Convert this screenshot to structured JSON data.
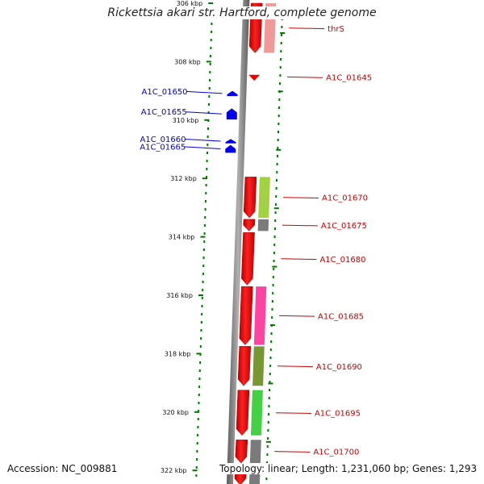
{
  "title": "Rickettsia akari str. Hartford, complete genome",
  "accession_text": "Accession: NC_009881",
  "summary_text": "Topology: linear; Length: 1,231,060 bp; Genes: 1,293",
  "colors": {
    "forward_label": "#cc0000",
    "reverse_label": "#0000cc",
    "tick": "#007700",
    "axis": "#808080"
  },
  "scale_ticks": [
    {
      "kbp": 306,
      "label": "306 kbp"
    },
    {
      "kbp": 308,
      "label": "308 kbp"
    },
    {
      "kbp": 310,
      "label": "310 kbp"
    },
    {
      "kbp": 312,
      "label": "312 kbp"
    },
    {
      "kbp": 314,
      "label": "314 kbp"
    },
    {
      "kbp": 316,
      "label": "316 kbp"
    },
    {
      "kbp": 318,
      "label": "318 kbp"
    },
    {
      "kbp": 320,
      "label": "320 kbp"
    },
    {
      "kbp": 322,
      "label": "322 kbp"
    }
  ],
  "forward_genes": [
    {
      "name": "thrS",
      "start": 306.0,
      "end": 307.7,
      "cog": "#ee9090"
    },
    {
      "name": "A1C_01645",
      "start": 308.45,
      "end": 308.6,
      "cog": null
    },
    {
      "name": "A1C_01670",
      "start": 311.95,
      "end": 313.35,
      "cog": "#9acd32"
    },
    {
      "name": "A1C_01675",
      "start": 313.4,
      "end": 313.8,
      "cog": "#707070"
    },
    {
      "name": "A1C_01680",
      "start": 313.85,
      "end": 315.65,
      "cog": null
    },
    {
      "name": "A1C_01685",
      "start": 315.7,
      "end": 317.7,
      "cog": "#ff3399"
    },
    {
      "name": "A1C_01690",
      "start": 317.75,
      "end": 319.1,
      "cog": "#6b8e23"
    },
    {
      "name": "A1C_01695",
      "start": 319.25,
      "end": 320.8,
      "cog": "#33cc33"
    },
    {
      "name": "A1C_01700",
      "start": 320.95,
      "end": 321.75,
      "cog": "#707070"
    },
    {
      "name": "",
      "start": 321.9,
      "end": 322.5,
      "cog": "#707070"
    }
  ],
  "reverse_genes": [
    {
      "name": "A1C_01650",
      "start": 309.0,
      "end": 309.18
    },
    {
      "name": "A1C_01655",
      "start": 309.6,
      "end": 309.98
    },
    {
      "name": "A1C_01660",
      "start": 310.65,
      "end": 310.8
    },
    {
      "name": "A1C_01665",
      "start": 310.85,
      "end": 311.12
    }
  ]
}
